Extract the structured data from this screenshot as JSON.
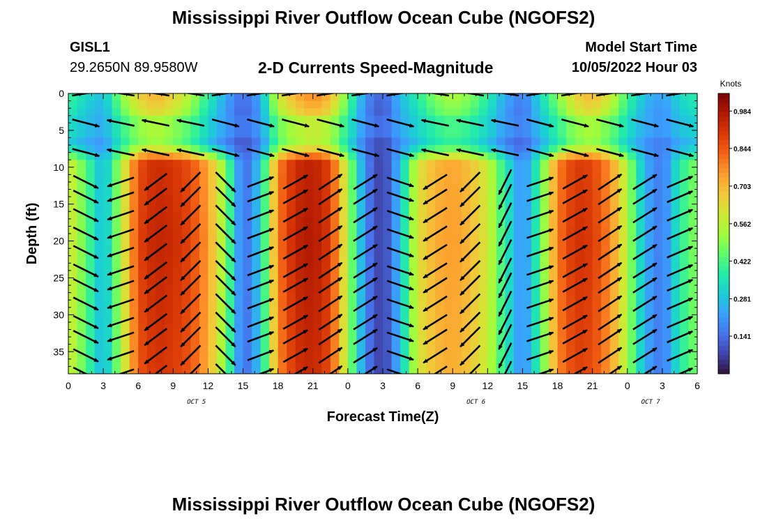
{
  "header": {
    "title": "Mississippi River Outflow Ocean Cube (NGOFS2)",
    "station_id": "GISL1",
    "station_coords": "29.2650N  89.9580W",
    "subtitle": "2-D Currents Speed-Magnitude",
    "model_start_label": "Model Start Time",
    "model_start_value": "10/05/2022 Hour 03"
  },
  "footer": {
    "title": "Mississippi River Outflow Ocean Cube (NGOFS2)"
  },
  "chart_data": {
    "type": "heatmap",
    "xlabel": "Forecast Time(Z)",
    "ylabel": "Depth (ft)",
    "x_ticks": [
      "0",
      "3",
      "6",
      "9",
      "12",
      "15",
      "18",
      "21",
      "0",
      "3",
      "6",
      "9",
      "12",
      "15",
      "18",
      "21",
      "0",
      "3",
      "6"
    ],
    "x_hours": [
      0,
      3,
      6,
      9,
      12,
      15,
      18,
      21,
      24,
      27,
      30,
      33,
      36,
      39,
      42,
      45,
      48,
      51,
      54
    ],
    "xlim": [
      0,
      54
    ],
    "date_labels": [
      {
        "label": "OCT 5",
        "hour": 11
      },
      {
        "label": "OCT 6",
        "hour": 35
      },
      {
        "label": "OCT 7",
        "hour": 50
      }
    ],
    "y_ticks": [
      0,
      5,
      10,
      15,
      20,
      25,
      30,
      35
    ],
    "ylim": [
      0,
      38
    ],
    "y_inverted": true,
    "colorbar": {
      "units": "Knots",
      "ticks": [
        "0.984",
        "0.844",
        "0.703",
        "0.562",
        "0.422",
        "0.281",
        "0.141"
      ],
      "range": [
        0,
        1.05
      ],
      "colormap": [
        "#30123b",
        "#4145ab",
        "#4675ed",
        "#39a2fc",
        "#1bcfd4",
        "#24eca6",
        "#61fc6c",
        "#a4fc3b",
        "#d1e834",
        "#f3c63a",
        "#fe9b2d",
        "#f36315",
        "#d93806",
        "#b11901",
        "#7a0403"
      ]
    },
    "speed_profile": {
      "hours": [
        0,
        1.5,
        3,
        4.5,
        6,
        7.5,
        9,
        10.5,
        12,
        13.5,
        15,
        16.5,
        18,
        19.5,
        21,
        22.5,
        24,
        25.5,
        27,
        28.5,
        30,
        31.5,
        33,
        34.5,
        36,
        37.5,
        39,
        40.5,
        42,
        43.5,
        45,
        46.5,
        48,
        49.5,
        51,
        52.5,
        54
      ],
      "surface": [
        0.38,
        0.3,
        0.25,
        0.45,
        0.6,
        0.66,
        0.6,
        0.5,
        0.35,
        0.22,
        0.12,
        0.22,
        0.55,
        0.66,
        0.72,
        0.65,
        0.42,
        0.18,
        0.1,
        0.25,
        0.35,
        0.45,
        0.5,
        0.45,
        0.35,
        0.22,
        0.15,
        0.3,
        0.45,
        0.6,
        0.65,
        0.55,
        0.38,
        0.25,
        0.2,
        0.3,
        0.35
      ],
      "deep": [
        0.62,
        0.45,
        0.25,
        0.55,
        0.88,
        0.95,
        0.93,
        0.88,
        0.75,
        0.5,
        0.12,
        0.3,
        0.8,
        0.95,
        0.98,
        0.9,
        0.55,
        0.18,
        0.05,
        0.28,
        0.62,
        0.72,
        0.75,
        0.7,
        0.6,
        0.38,
        0.18,
        0.42,
        0.8,
        0.92,
        0.9,
        0.78,
        0.55,
        0.25,
        0.15,
        0.38,
        0.5
      ]
    },
    "vector_rows_ft": [
      0,
      4,
      8,
      12,
      14,
      16.5,
      19,
      21.5,
      24,
      26,
      28.5,
      31,
      33,
      35.5,
      38
    ],
    "vector_cols": [
      {
        "hour": 1.5,
        "dx": 0.8,
        "dy": -0.4
      },
      {
        "hour": 4.5,
        "dx": -0.9,
        "dy": -0.3
      },
      {
        "hour": 7.5,
        "dx": -0.8,
        "dy": -0.6
      },
      {
        "hour": 10.5,
        "dx": -0.7,
        "dy": -0.7
      },
      {
        "hour": 13.5,
        "dx": 0.2,
        "dy": -0.2
      },
      {
        "hour": 16.5,
        "dx": 0.8,
        "dy": 0.3
      },
      {
        "hour": 19.5,
        "dx": 0.9,
        "dy": 0.5
      },
      {
        "hour": 22.5,
        "dx": 0.9,
        "dy": 0.6
      },
      {
        "hour": 25.5,
        "dx": 0.8,
        "dy": 0.5
      },
      {
        "hour": 28.5,
        "dx": 0.6,
        "dy": -0.2
      },
      {
        "hour": 31.5,
        "dx": -0.8,
        "dy": -0.5
      },
      {
        "hour": 34.5,
        "dx": -0.7,
        "dy": -0.7
      },
      {
        "hour": 37.5,
        "dx": -0.3,
        "dy": -0.6
      },
      {
        "hour": 40.5,
        "dx": 0.6,
        "dy": 0.2
      },
      {
        "hour": 43.5,
        "dx": 0.9,
        "dy": 0.5
      },
      {
        "hour": 46.5,
        "dx": 0.9,
        "dy": 0.6
      },
      {
        "hour": 49.5,
        "dx": 0.8,
        "dy": 0.5
      },
      {
        "hour": 52.5,
        "dx": 0.7,
        "dy": 0.3
      }
    ]
  }
}
